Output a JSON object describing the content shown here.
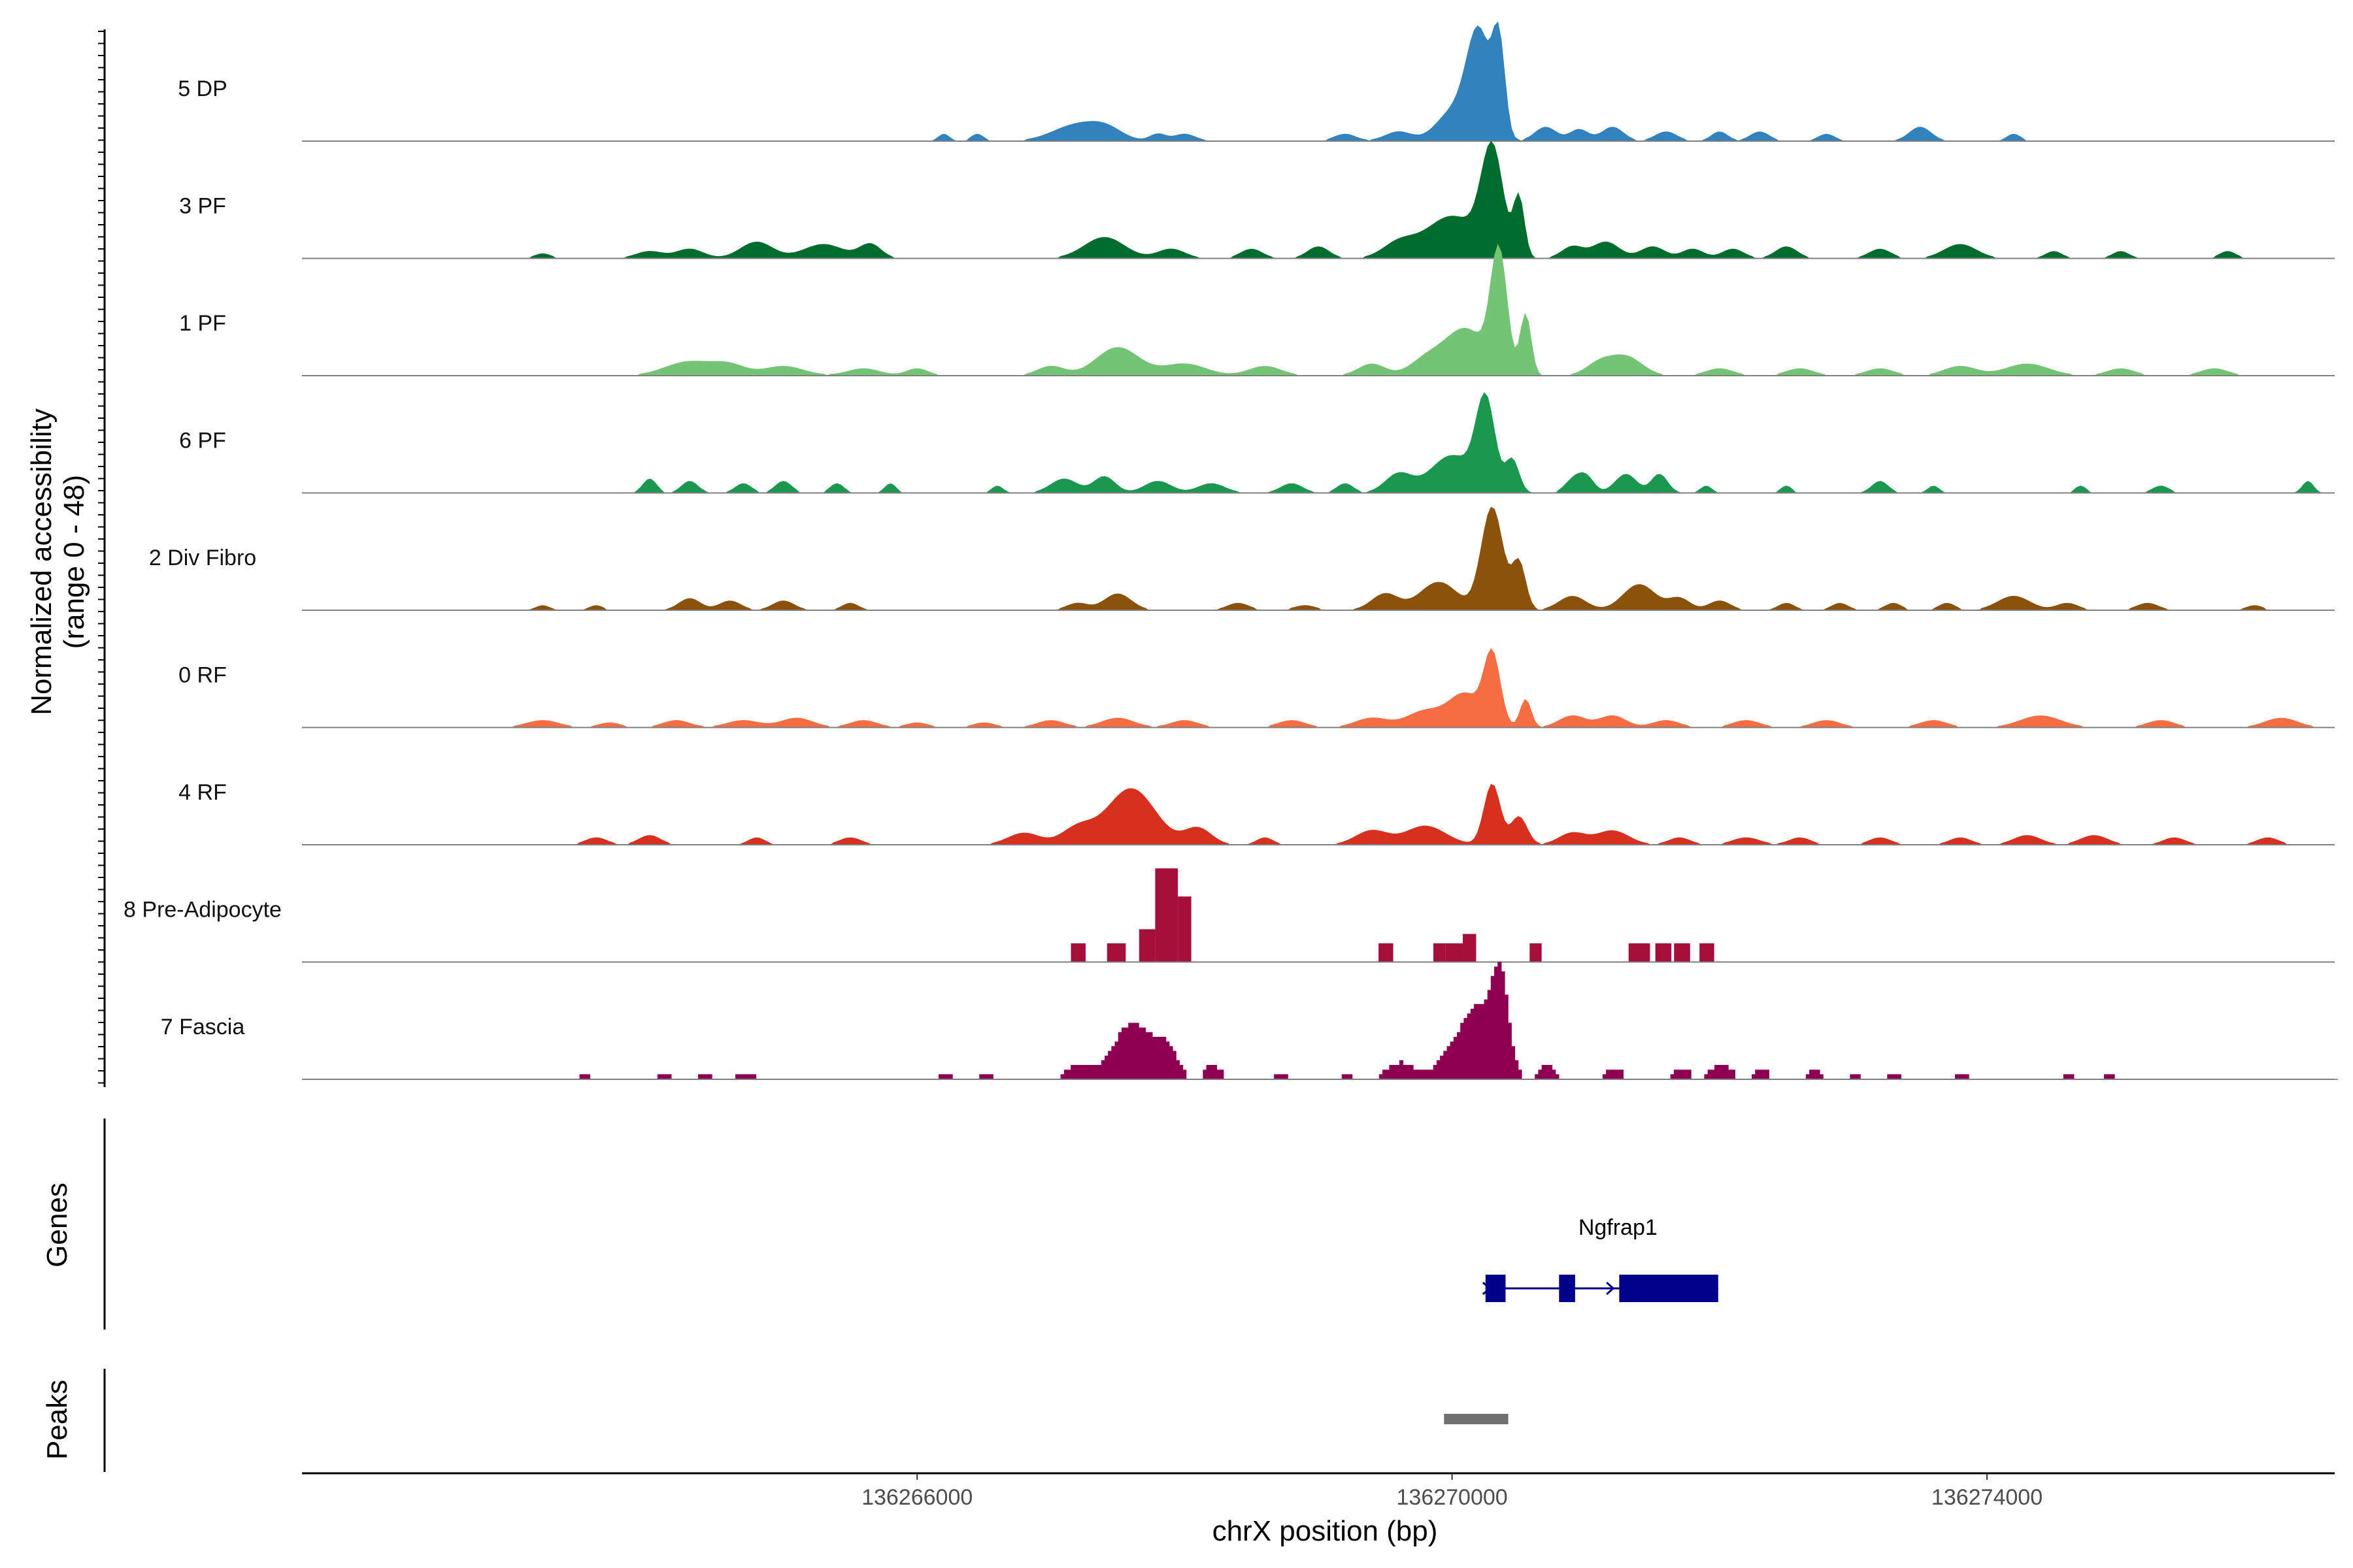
{
  "chart_data": {
    "type": "area",
    "title": "",
    "xlabel": "chrX position (bp)",
    "ylabel": "Normalized accessibility",
    "ylabel_range": "(range 0 - 48)",
    "ylim": [
      0,
      48
    ],
    "xlim": [
      136261400,
      136276600
    ],
    "x_ticks": [
      136266000,
      136270000,
      136274000
    ],
    "x_tick_labels": [
      "136266000",
      "136270000",
      "136274000"
    ],
    "tracks": [
      {
        "name": "5 DP",
        "color": "#3182bd",
        "peaks": [
          [
            136266200,
            40,
            3
          ],
          [
            136266450,
            45,
            3
          ],
          [
            136267200,
            180,
            7
          ],
          [
            136267420,
            120,
            4
          ],
          [
            136267800,
            60,
            3
          ],
          [
            136268000,
            80,
            3
          ],
          [
            136269200,
            80,
            3
          ],
          [
            136269600,
            100,
            4
          ],
          [
            136270000,
            120,
            12
          ],
          [
            136270200,
            90,
            46
          ],
          [
            136270350,
            45,
            38
          ],
          [
            136270700,
            80,
            6
          ],
          [
            136270950,
            70,
            5
          ],
          [
            136271200,
            80,
            6
          ],
          [
            136271600,
            80,
            4
          ],
          [
            136272000,
            60,
            4
          ],
          [
            136272300,
            70,
            4
          ],
          [
            136272800,
            60,
            3
          ],
          [
            136273500,
            80,
            6
          ],
          [
            136274200,
            50,
            3
          ]
        ]
      },
      {
        "name": "3 PF",
        "color": "#006d2c",
        "peaks": [
          [
            136263200,
            60,
            2
          ],
          [
            136264000,
            100,
            3
          ],
          [
            136264300,
            100,
            4
          ],
          [
            136264800,
            120,
            7
          ],
          [
            136265300,
            150,
            6
          ],
          [
            136265650,
            80,
            6
          ],
          [
            136267400,
            150,
            9
          ],
          [
            136267900,
            100,
            4
          ],
          [
            136268500,
            80,
            4
          ],
          [
            136269000,
            80,
            5
          ],
          [
            136269600,
            120,
            6
          ],
          [
            136270000,
            200,
            18
          ],
          [
            136270300,
            80,
            44
          ],
          [
            136270500,
            40,
            25
          ],
          [
            136270900,
            80,
            5
          ],
          [
            136271150,
            100,
            7
          ],
          [
            136271500,
            90,
            5
          ],
          [
            136271800,
            80,
            4
          ],
          [
            136272100,
            80,
            4
          ],
          [
            136272500,
            80,
            5
          ],
          [
            136273200,
            80,
            4
          ],
          [
            136273800,
            120,
            6
          ],
          [
            136274500,
            60,
            3
          ],
          [
            136275000,
            60,
            3
          ],
          [
            136275800,
            60,
            3
          ]
        ]
      },
      {
        "name": "1 PF",
        "color": "#74c476",
        "peaks": [
          [
            136264300,
            180,
            6
          ],
          [
            136264600,
            120,
            4
          ],
          [
            136265000,
            150,
            4
          ],
          [
            136265600,
            120,
            3
          ],
          [
            136266000,
            80,
            3
          ],
          [
            136267000,
            100,
            4
          ],
          [
            136267500,
            160,
            12
          ],
          [
            136268000,
            160,
            5
          ],
          [
            136268600,
            120,
            4
          ],
          [
            136269400,
            100,
            5
          ],
          [
            136269800,
            120,
            6
          ],
          [
            136270100,
            160,
            20
          ],
          [
            136270350,
            60,
            50
          ],
          [
            136270550,
            40,
            26
          ],
          [
            136271100,
            100,
            5
          ],
          [
            136271300,
            120,
            8
          ],
          [
            136272000,
            100,
            3
          ],
          [
            136272600,
            100,
            3
          ],
          [
            136273200,
            100,
            3
          ],
          [
            136273800,
            120,
            4
          ],
          [
            136274300,
            160,
            5
          ],
          [
            136275000,
            100,
            3
          ],
          [
            136275700,
            100,
            3
          ]
        ]
      },
      {
        "name": "6 PF",
        "color": "#1a9850",
        "peaks": [
          [
            136264000,
            50,
            6
          ],
          [
            136264300,
            60,
            5
          ],
          [
            136264700,
            60,
            4
          ],
          [
            136265000,
            60,
            5
          ],
          [
            136265400,
            50,
            4
          ],
          [
            136265800,
            40,
            4
          ],
          [
            136266600,
            40,
            3
          ],
          [
            136267100,
            100,
            6
          ],
          [
            136267400,
            80,
            7
          ],
          [
            136267800,
            100,
            5
          ],
          [
            136268200,
            100,
            4
          ],
          [
            136268800,
            80,
            4
          ],
          [
            136269200,
            60,
            4
          ],
          [
            136269600,
            100,
            8
          ],
          [
            136270000,
            160,
            16
          ],
          [
            136270250,
            70,
            38
          ],
          [
            136270450,
            50,
            14
          ],
          [
            136270900,
            60,
            5
          ],
          [
            136271000,
            60,
            7
          ],
          [
            136271300,
            80,
            8
          ],
          [
            136271550,
            60,
            8
          ],
          [
            136271900,
            40,
            3
          ],
          [
            136272500,
            40,
            3
          ],
          [
            136273200,
            60,
            5
          ],
          [
            136273600,
            40,
            3
          ],
          [
            136274700,
            40,
            3
          ],
          [
            136275300,
            60,
            3
          ],
          [
            136276400,
            40,
            5
          ]
        ]
      },
      {
        "name": "2 Div Fibro",
        "color": "#8c510a",
        "peaks": [
          [
            136263200,
            50,
            2
          ],
          [
            136263600,
            50,
            2
          ],
          [
            136264300,
            80,
            5
          ],
          [
            136264600,
            80,
            4
          ],
          [
            136265000,
            80,
            4
          ],
          [
            136265500,
            60,
            3
          ],
          [
            136267200,
            80,
            3
          ],
          [
            136267500,
            100,
            7
          ],
          [
            136268400,
            80,
            3
          ],
          [
            136268900,
            80,
            2
          ],
          [
            136269500,
            100,
            7
          ],
          [
            136269900,
            140,
            12
          ],
          [
            136270300,
            80,
            44
          ],
          [
            136270500,
            50,
            20
          ],
          [
            136270900,
            100,
            6
          ],
          [
            136271400,
            120,
            11
          ],
          [
            136271700,
            80,
            5
          ],
          [
            136272000,
            80,
            4
          ],
          [
            136272500,
            60,
            3
          ],
          [
            136272900,
            60,
            3
          ],
          [
            136273300,
            60,
            3
          ],
          [
            136273700,
            60,
            3
          ],
          [
            136274200,
            120,
            6
          ],
          [
            136274600,
            80,
            3
          ],
          [
            136275200,
            80,
            3
          ],
          [
            136276000,
            60,
            2
          ]
        ]
      },
      {
        "name": "0 RF",
        "color": "#f46d43",
        "peaks": [
          [
            136263200,
            120,
            3
          ],
          [
            136263700,
            80,
            2
          ],
          [
            136264200,
            100,
            3
          ],
          [
            136264700,
            120,
            3
          ],
          [
            136265100,
            120,
            4
          ],
          [
            136265600,
            100,
            3
          ],
          [
            136266000,
            80,
            2
          ],
          [
            136266500,
            80,
            2
          ],
          [
            136267000,
            100,
            3
          ],
          [
            136267500,
            120,
            4
          ],
          [
            136268000,
            100,
            3
          ],
          [
            136268800,
            100,
            3
          ],
          [
            136269400,
            120,
            4
          ],
          [
            136269800,
            140,
            7
          ],
          [
            136270100,
            120,
            14
          ],
          [
            136270300,
            60,
            30
          ],
          [
            136270550,
            40,
            12
          ],
          [
            136270900,
            100,
            5
          ],
          [
            136271200,
            100,
            5
          ],
          [
            136271600,
            100,
            3
          ],
          [
            136272200,
            100,
            3
          ],
          [
            136272800,
            100,
            3
          ],
          [
            136273600,
            100,
            3
          ],
          [
            136274400,
            150,
            5
          ],
          [
            136275300,
            100,
            3
          ],
          [
            136276200,
            120,
            4
          ]
        ]
      },
      {
        "name": "4 RF",
        "color": "#d7301f",
        "peaks": [
          [
            136263600,
            80,
            3
          ],
          [
            136264000,
            80,
            4
          ],
          [
            136264800,
            60,
            3
          ],
          [
            136265500,
            80,
            3
          ],
          [
            136266800,
            120,
            5
          ],
          [
            136267200,
            120,
            7
          ],
          [
            136267600,
            180,
            24
          ],
          [
            136268100,
            100,
            7
          ],
          [
            136268600,
            60,
            3
          ],
          [
            136269400,
            120,
            6
          ],
          [
            136269800,
            150,
            8
          ],
          [
            136270300,
            60,
            26
          ],
          [
            136270500,
            60,
            12
          ],
          [
            136270900,
            100,
            5
          ],
          [
            136271200,
            120,
            6
          ],
          [
            136271700,
            80,
            3
          ],
          [
            136272200,
            100,
            3
          ],
          [
            136272600,
            80,
            3
          ],
          [
            136273200,
            80,
            3
          ],
          [
            136273800,
            80,
            3
          ],
          [
            136274300,
            100,
            4
          ],
          [
            136274800,
            100,
            4
          ],
          [
            136275400,
            80,
            3
          ],
          [
            136276100,
            80,
            3
          ]
        ]
      }
    ],
    "block_tracks": [
      {
        "name": "8 Pre-Adipocyte",
        "color": "#a50f3a",
        "blocks": [
          [
            136267150,
            136267260,
            8
          ],
          [
            136267420,
            136267560,
            8
          ],
          [
            136267660,
            136267780,
            14
          ],
          [
            136267780,
            136267950,
            40
          ],
          [
            136267950,
            136268050,
            28
          ],
          [
            136269450,
            136269560,
            8
          ],
          [
            136269860,
            136269950,
            8
          ],
          [
            136269950,
            136270080,
            8
          ],
          [
            136270080,
            136270180,
            12
          ],
          [
            136270580,
            136270670,
            8
          ],
          [
            136271320,
            136271480,
            8
          ],
          [
            136271520,
            136271640,
            8
          ],
          [
            136271660,
            136271780,
            8
          ],
          [
            136271850,
            136271960,
            8
          ]
        ]
      }
    ],
    "blocky_tracks": [
      {
        "name": "7 Fascia",
        "color": "#8e0152",
        "peaks": [
          [
            136263500,
            60,
            3
          ],
          [
            136264100,
            60,
            3
          ],
          [
            136264400,
            60,
            3
          ],
          [
            136264700,
            100,
            3
          ],
          [
            136266200,
            60,
            3
          ],
          [
            136266500,
            60,
            3
          ],
          [
            136267200,
            100,
            6
          ],
          [
            136267600,
            140,
            24
          ],
          [
            136267850,
            80,
            12
          ],
          [
            136268200,
            60,
            6
          ],
          [
            136268700,
            60,
            3
          ],
          [
            136269200,
            60,
            3
          ],
          [
            136269600,
            100,
            7
          ],
          [
            136270000,
            120,
            10
          ],
          [
            136270200,
            120,
            28
          ],
          [
            136270350,
            60,
            36
          ],
          [
            136270700,
            60,
            6
          ],
          [
            136271200,
            60,
            5
          ],
          [
            136271700,
            60,
            5
          ],
          [
            136272000,
            80,
            6
          ],
          [
            136272300,
            60,
            4
          ],
          [
            136272700,
            60,
            4
          ],
          [
            136273000,
            60,
            3
          ],
          [
            136273300,
            60,
            3
          ],
          [
            136273800,
            60,
            3
          ],
          [
            136274600,
            60,
            3
          ],
          [
            136274900,
            60,
            3
          ]
        ]
      }
    ],
    "genes": [
      {
        "name": "Ngfrap1",
        "strand": "+",
        "start": 136270250,
        "end": 136271990,
        "exons": [
          [
            136270250,
            136270400
          ],
          [
            136270800,
            136270920
          ],
          [
            136271250,
            136271990
          ]
        ]
      }
    ],
    "peaks_track": [
      {
        "start": 136269940,
        "end": 136270420
      }
    ],
    "panel_labels": {
      "genes": "Genes",
      "peaks": "Peaks"
    }
  }
}
